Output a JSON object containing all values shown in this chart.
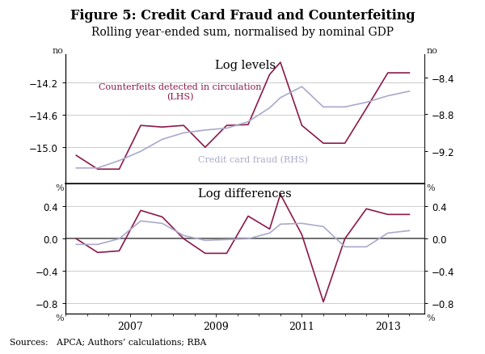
{
  "title": "Figure 5: Credit Card Fraud and Counterfeiting",
  "subtitle": "Rolling year-ended sum, normalised by nominal GDP",
  "source_text": "Sources:   APCA; Authors’ calculations; RBA",
  "title_fontsize": 11.5,
  "subtitle_fontsize": 10,
  "background_color": "#ffffff",
  "years": [
    2005.75,
    2006.25,
    2006.75,
    2007.25,
    2007.75,
    2008.25,
    2008.75,
    2009.25,
    2009.75,
    2010.25,
    2010.5,
    2011.0,
    2011.5,
    2012.0,
    2012.5,
    2013.0,
    2013.5
  ],
  "lhs_levels": [
    -15.1,
    -15.27,
    -15.27,
    -14.73,
    -14.75,
    -14.73,
    -15.0,
    -14.73,
    -14.72,
    -14.1,
    -13.95,
    -14.73,
    -14.95,
    -14.95,
    -14.52,
    -14.08,
    -14.08
  ],
  "rhs_levels": [
    -9.38,
    -9.38,
    -9.3,
    -9.2,
    -9.07,
    -9.0,
    -8.97,
    -8.95,
    -8.88,
    -8.73,
    -8.62,
    -8.5,
    -8.72,
    -8.72,
    -8.67,
    -8.6,
    -8.55
  ],
  "lhs_diff": [
    0.0,
    -0.17,
    -0.15,
    0.35,
    0.27,
    0.0,
    -0.18,
    -0.18,
    0.28,
    0.12,
    0.55,
    0.05,
    -0.78,
    0.0,
    0.37,
    0.3,
    0.3
  ],
  "rhs_diff": [
    -0.07,
    -0.07,
    0.0,
    0.22,
    0.19,
    0.04,
    -0.02,
    -0.01,
    0.0,
    0.07,
    0.18,
    0.19,
    0.15,
    -0.1,
    -0.1,
    0.07,
    0.1
  ],
  "lhs_color": "#8b1a4a",
  "rhs_color": "#aaaacc",
  "grid_color": "#cccccc",
  "axis_color": "#222222",
  "separator_color": "#555555",
  "levels_ylim_lhs": [
    -15.45,
    -13.85
  ],
  "levels_yticks_lhs": [
    -15.0,
    -14.6,
    -14.2
  ],
  "levels_ylim_rhs": [
    -9.55,
    -8.15
  ],
  "levels_yticks_rhs": [
    -9.2,
    -8.8,
    -8.4
  ],
  "diff_ylim": [
    -0.92,
    0.68
  ],
  "diff_yticks": [
    -0.8,
    -0.4,
    0.0,
    0.4
  ],
  "label_log_levels": "Log levels",
  "label_log_diff": "Log differences",
  "label_lhs": "Counterfeits detected in circulation\n(LHS)",
  "label_rhs": "Credit card fraud (RHS)",
  "label_no": "no",
  "label_pct": "%",
  "xtick_labels": [
    "2007",
    "2009",
    "2011",
    "2013"
  ],
  "xtick_positions": [
    2007,
    2009,
    2011,
    2013
  ]
}
